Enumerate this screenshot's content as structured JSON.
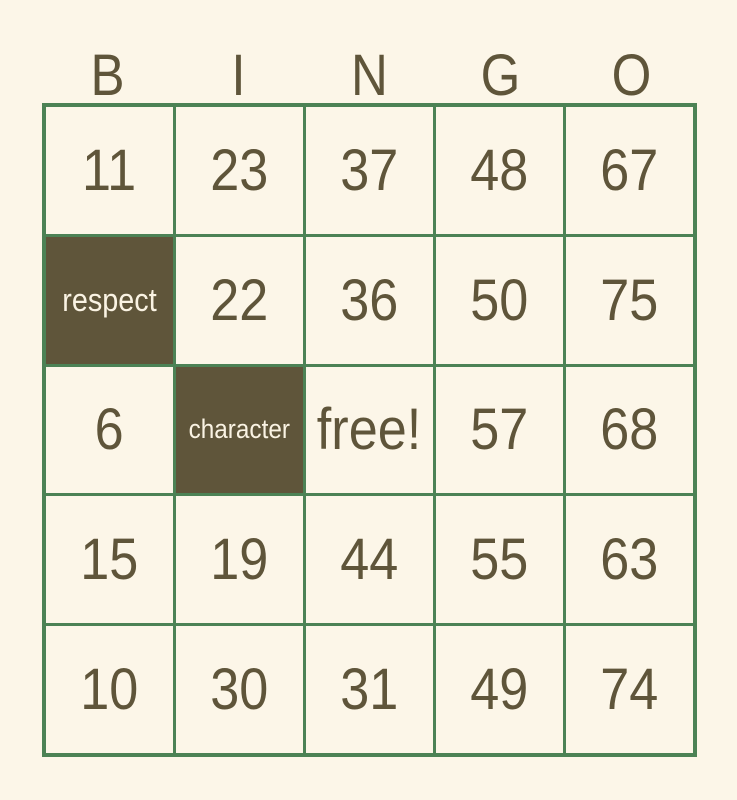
{
  "header": {
    "letters": [
      "B",
      "I",
      "N",
      "G",
      "O"
    ]
  },
  "board": {
    "rows": 5,
    "cols": 5,
    "cells": [
      {
        "label": "11",
        "marked": false
      },
      {
        "label": "23",
        "marked": false
      },
      {
        "label": "37",
        "marked": false
      },
      {
        "label": "48",
        "marked": false
      },
      {
        "label": "67",
        "marked": false
      },
      {
        "label": "respect",
        "marked": true
      },
      {
        "label": "22",
        "marked": false
      },
      {
        "label": "36",
        "marked": false
      },
      {
        "label": "50",
        "marked": false
      },
      {
        "label": "75",
        "marked": false
      },
      {
        "label": "6",
        "marked": false
      },
      {
        "label": "character",
        "marked": true
      },
      {
        "label": "free!",
        "marked": false
      },
      {
        "label": "57",
        "marked": false
      },
      {
        "label": "68",
        "marked": false
      },
      {
        "label": "15",
        "marked": false
      },
      {
        "label": "19",
        "marked": false
      },
      {
        "label": "44",
        "marked": false
      },
      {
        "label": "55",
        "marked": false
      },
      {
        "label": "63",
        "marked": false
      },
      {
        "label": "10",
        "marked": false
      },
      {
        "label": "30",
        "marked": false
      },
      {
        "label": "31",
        "marked": false
      },
      {
        "label": "49",
        "marked": false
      },
      {
        "label": "74",
        "marked": false
      }
    ]
  },
  "colors": {
    "background": "#FCF6E8",
    "grid_line": "#4C8255",
    "text": "#5F553A",
    "marked_background": "#5F553A",
    "marked_text": "#FAF3E3"
  }
}
